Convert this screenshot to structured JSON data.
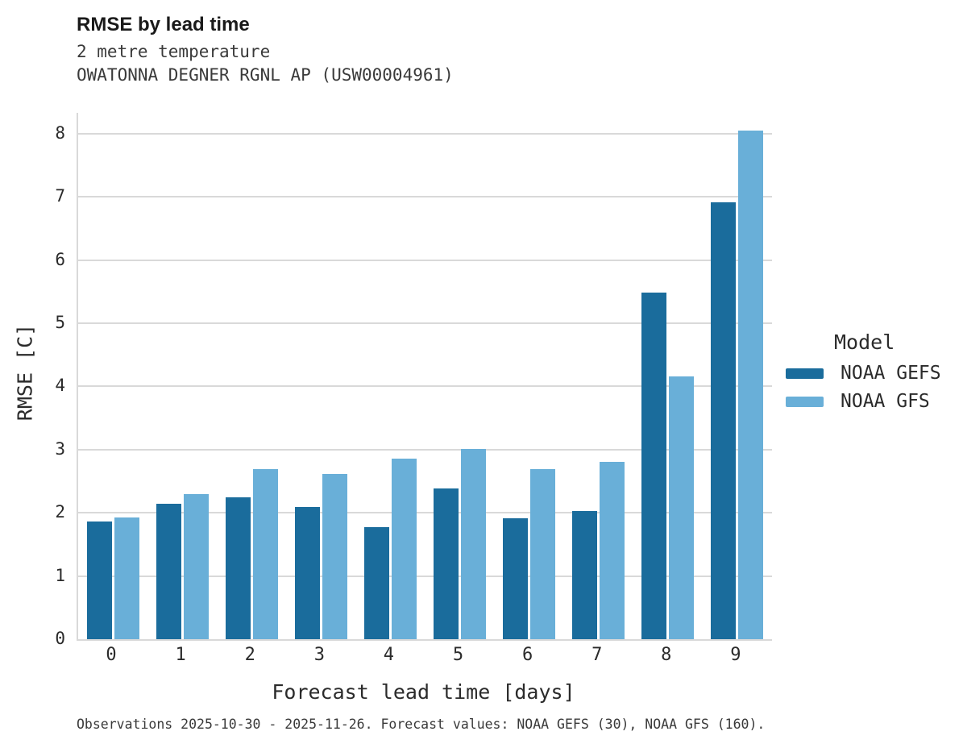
{
  "header": {
    "title": "RMSE by lead time",
    "subtitle_lines": [
      "2 metre temperature",
      "OWATONNA DEGNER RGNL AP (USW00004961)"
    ]
  },
  "chart_data": {
    "type": "bar",
    "title": "RMSE by lead time",
    "subtitle": [
      "2 metre temperature",
      "OWATONNA DEGNER RGNL AP (USW00004961)"
    ],
    "categories": [
      "0",
      "1",
      "2",
      "3",
      "4",
      "5",
      "6",
      "7",
      "8",
      "9"
    ],
    "series": [
      {
        "name": "NOAA GEFS",
        "color": "#1a6c9c",
        "values": [
          1.86,
          2.14,
          2.24,
          2.09,
          1.77,
          2.38,
          1.91,
          2.03,
          5.48,
          6.91
        ]
      },
      {
        "name": "NOAA GFS",
        "color": "#69afd8",
        "values": [
          1.93,
          2.3,
          2.69,
          2.61,
          2.86,
          3.01,
          2.69,
          2.8,
          4.16,
          8.05
        ]
      }
    ],
    "xlabel": "Forecast lead time [days]",
    "ylabel": "RMSE [C]",
    "ylim": [
      0,
      8.33
    ],
    "yticks": [
      0,
      1,
      2,
      3,
      4,
      5,
      6,
      7,
      8
    ],
    "grid": true,
    "legend": {
      "title": "Model",
      "position": "right"
    }
  },
  "footer": {
    "text": "Observations 2025-10-30 - 2025-11-26. Forecast values: NOAA GEFS (30), NOAA GFS (160)."
  },
  "colors": {
    "gefs_bar": "#1a6c9c",
    "gfs_bar": "#69afd8",
    "gridline": "#d9d9d9",
    "title_text": "#1a1a1a",
    "body_text": "#3a3a3a"
  }
}
